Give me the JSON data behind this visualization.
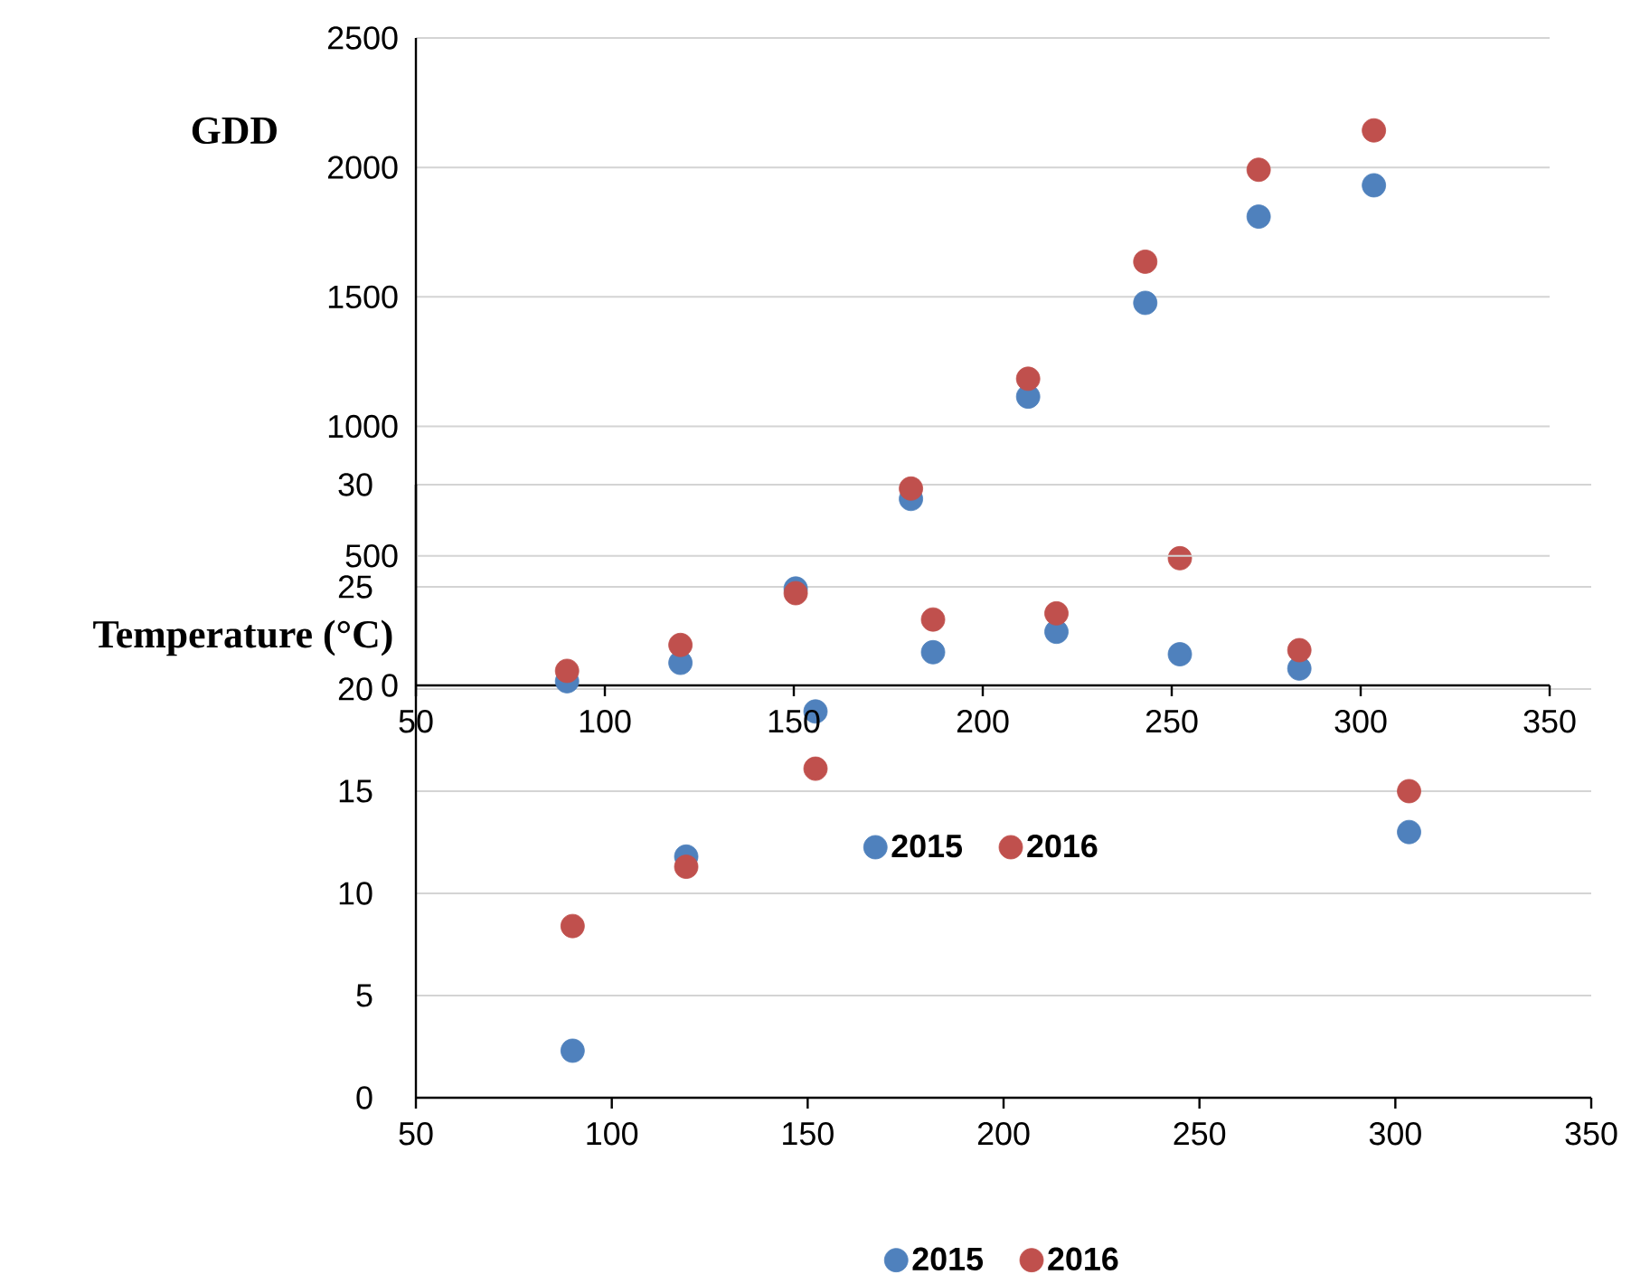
{
  "chart_data": [
    {
      "type": "scatter",
      "ylabel": "Temperature (°C)",
      "x": [
        90,
        119,
        152,
        182,
        213.5,
        245,
        275.5,
        303.5
      ],
      "series": [
        {
          "name": "2015",
          "color": "#4f81bd",
          "values": [
            2.3,
            11.8,
            18.9,
            21.8,
            22.8,
            21.7,
            21.0,
            13.0
          ]
        },
        {
          "name": "2016",
          "color": "#c0504d",
          "values": [
            8.4,
            11.3,
            16.1,
            23.4,
            23.7,
            26.4,
            21.9,
            15.0
          ]
        }
      ],
      "xlim": [
        50,
        350
      ],
      "xticks": [
        50,
        100,
        150,
        200,
        250,
        300,
        350
      ],
      "ylim": [
        0,
        30
      ],
      "yticks": [
        0,
        5,
        10,
        15,
        20,
        25,
        30
      ],
      "grid": "y",
      "legend": "bottom",
      "marker": "circle"
    },
    {
      "type": "scatter",
      "ylabel": "GDD",
      "x": [
        90,
        120,
        150.5,
        181,
        212,
        243,
        273,
        303.5
      ],
      "series": [
        {
          "name": "2015",
          "color": "#4f81bd",
          "values": [
            16,
            87,
            374,
            720,
            1115,
            1477,
            1810,
            1931
          ]
        },
        {
          "name": "2016",
          "color": "#c0504d",
          "values": [
            56,
            156,
            356,
            760,
            1184,
            1636,
            1991,
            2143
          ]
        }
      ],
      "xlim": [
        50,
        350
      ],
      "xticks": [
        50,
        100,
        150,
        200,
        250,
        300,
        350
      ],
      "ylim": [
        0,
        2500
      ],
      "yticks": [
        0,
        500,
        1000,
        1500,
        2000,
        2500
      ],
      "grid": "y",
      "legend": "bottom",
      "marker": "circle"
    }
  ]
}
